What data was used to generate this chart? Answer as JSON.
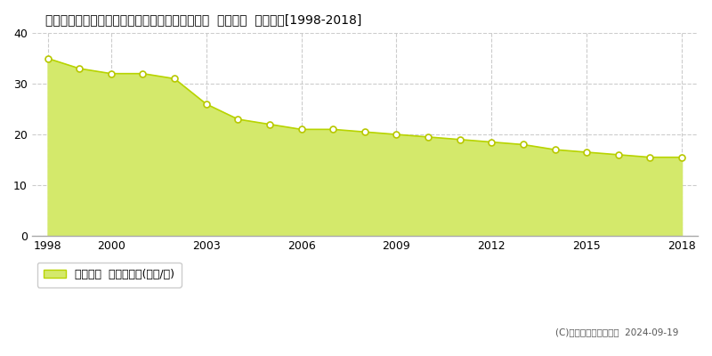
{
  "title": "愛知県知多郡武豊町大字東大高字北浜田１６番外  公示地価  地価推移[1998-2018]",
  "years": [
    1998,
    1999,
    2000,
    2001,
    2002,
    2003,
    2004,
    2005,
    2006,
    2007,
    2008,
    2009,
    2010,
    2011,
    2012,
    2013,
    2014,
    2015,
    2016,
    2017,
    2018
  ],
  "values": [
    35.0,
    33.0,
    32.0,
    32.0,
    31.0,
    26.0,
    23.0,
    22.0,
    21.0,
    21.0,
    20.5,
    20.0,
    19.5,
    19.0,
    18.5,
    18.0,
    17.0,
    16.5,
    16.0,
    15.5,
    15.5
  ],
  "fill_color": "#d4e96b",
  "line_color": "#b8d400",
  "marker_color": "#ffffff",
  "marker_edge_color": "#b8c800",
  "background_color": "#ffffff",
  "plot_bg_color": "#ffffff",
  "grid_color": "#cccccc",
  "xlabel": "",
  "ylabel": "",
  "ylim": [
    0,
    40
  ],
  "yticks": [
    0,
    10,
    20,
    30,
    40
  ],
  "xticks": [
    1998,
    2000,
    2003,
    2006,
    2009,
    2012,
    2015,
    2018
  ],
  "legend_label": "公示地価  平均坪単価(万円/坪)",
  "copyright_text": "(C)土地価格ドットコム  2024-09-19",
  "title_fontsize": 11,
  "tick_fontsize": 9,
  "legend_fontsize": 9
}
